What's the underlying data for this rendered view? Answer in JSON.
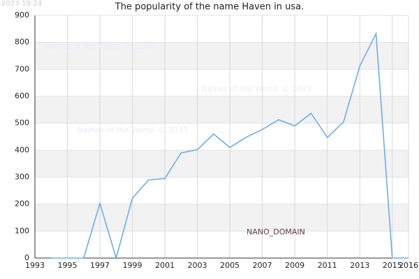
{
  "chart_data": {
    "type": "line",
    "title": "The popularity of the name Haven in usa.",
    "date": "2023-10-24",
    "watermarks": [
      "Names of the World. © 2023",
      "Names of the World. © 2023",
      "Names of the World. © 2023"
    ],
    "brand": "NANO_DOMAIN",
    "x": [
      1994,
      1995,
      1996,
      1997,
      1998,
      1999,
      2000,
      2001,
      2002,
      2003,
      2004,
      2005,
      2006,
      2007,
      2008,
      2009,
      2010,
      2011,
      2012,
      2013,
      2014,
      2015,
      2016
    ],
    "series": [
      {
        "name": "Haven",
        "color": "#6aaee8",
        "values": [
          0,
          0,
          0,
          203,
          0,
          222,
          290,
          295,
          390,
          402,
          460,
          410,
          448,
          477,
          513,
          490,
          537,
          447,
          505,
          712,
          832,
          0,
          0
        ]
      }
    ],
    "xlim": [
      1993,
      2016
    ],
    "xticks": [
      1993,
      1995,
      1997,
      1999,
      2001,
      2003,
      2005,
      2007,
      2009,
      2011,
      2013,
      2015,
      2016
    ],
    "ylim": [
      0,
      900
    ],
    "yticks": [
      0,
      100,
      200,
      300,
      400,
      500,
      600,
      700,
      800,
      900
    ],
    "grid": true,
    "banded_grid": true
  }
}
